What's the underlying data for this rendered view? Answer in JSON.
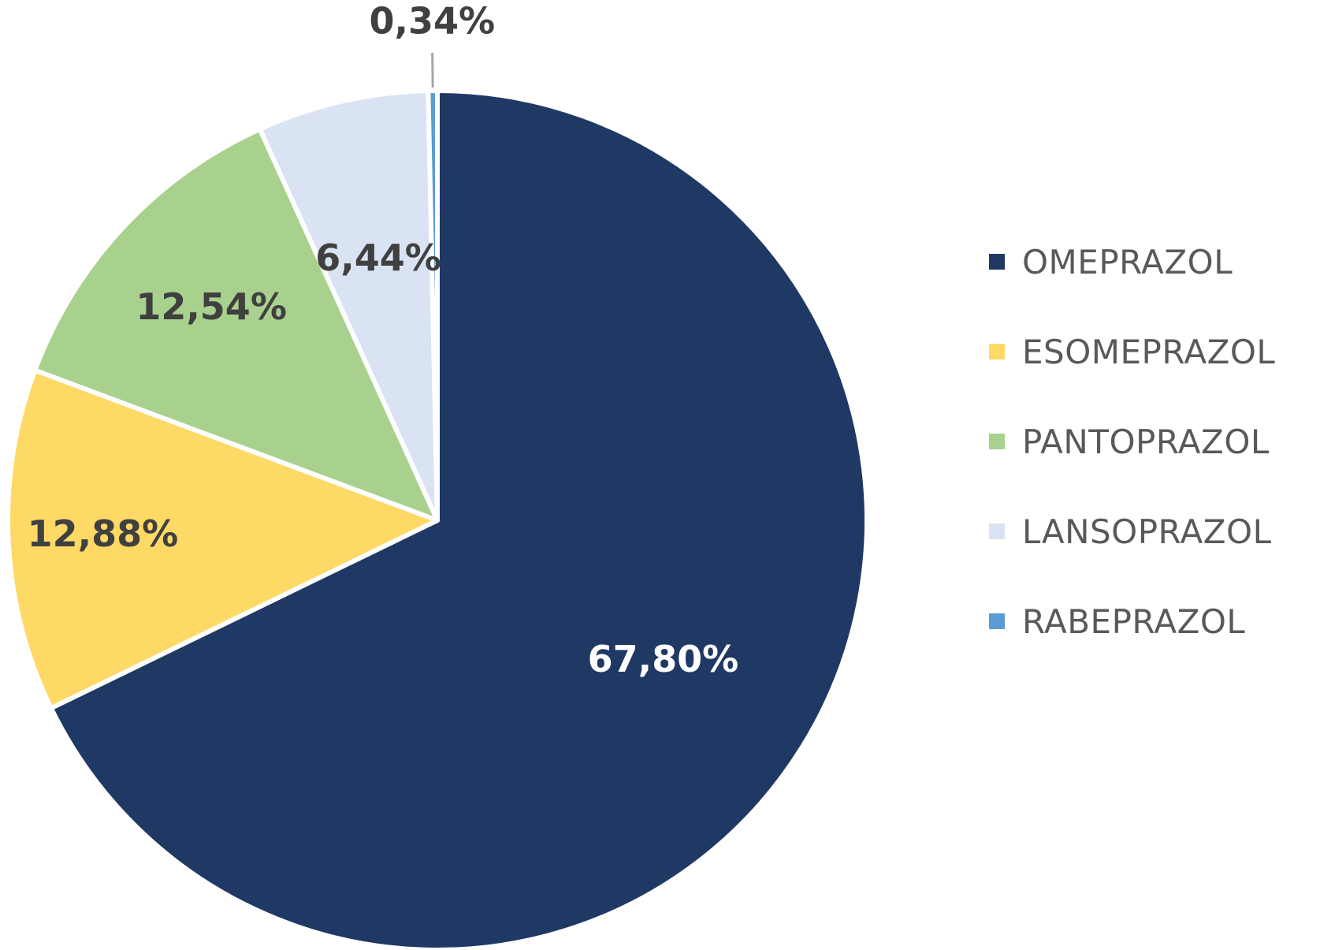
{
  "chart_data": {
    "type": "pie",
    "start_angle_deg": 0,
    "direction": "clockwise",
    "legend_position": "right",
    "slices": [
      {
        "name": "OMEPRAZOL",
        "value": 67.8,
        "label": "67,80%",
        "color": "#203864",
        "label_color": "#ffffff"
      },
      {
        "name": "ESOMEPRAZOL",
        "value": 12.88,
        "label": "12,88%",
        "color": "#ffd966",
        "label_color": "#404040"
      },
      {
        "name": "PANTOPRAZOL",
        "value": 12.54,
        "label": "12,54%",
        "color": "#a9d18e",
        "label_color": "#404040"
      },
      {
        "name": "LANSOPRAZOL",
        "value": 6.44,
        "label": "6,44%",
        "color": "#dae3f3",
        "label_color": "#404040"
      },
      {
        "name": "RABEPRAZOL",
        "value": 0.34,
        "label": "0,34%",
        "color": "#5b9bd5",
        "label_color": "#404040"
      }
    ]
  }
}
